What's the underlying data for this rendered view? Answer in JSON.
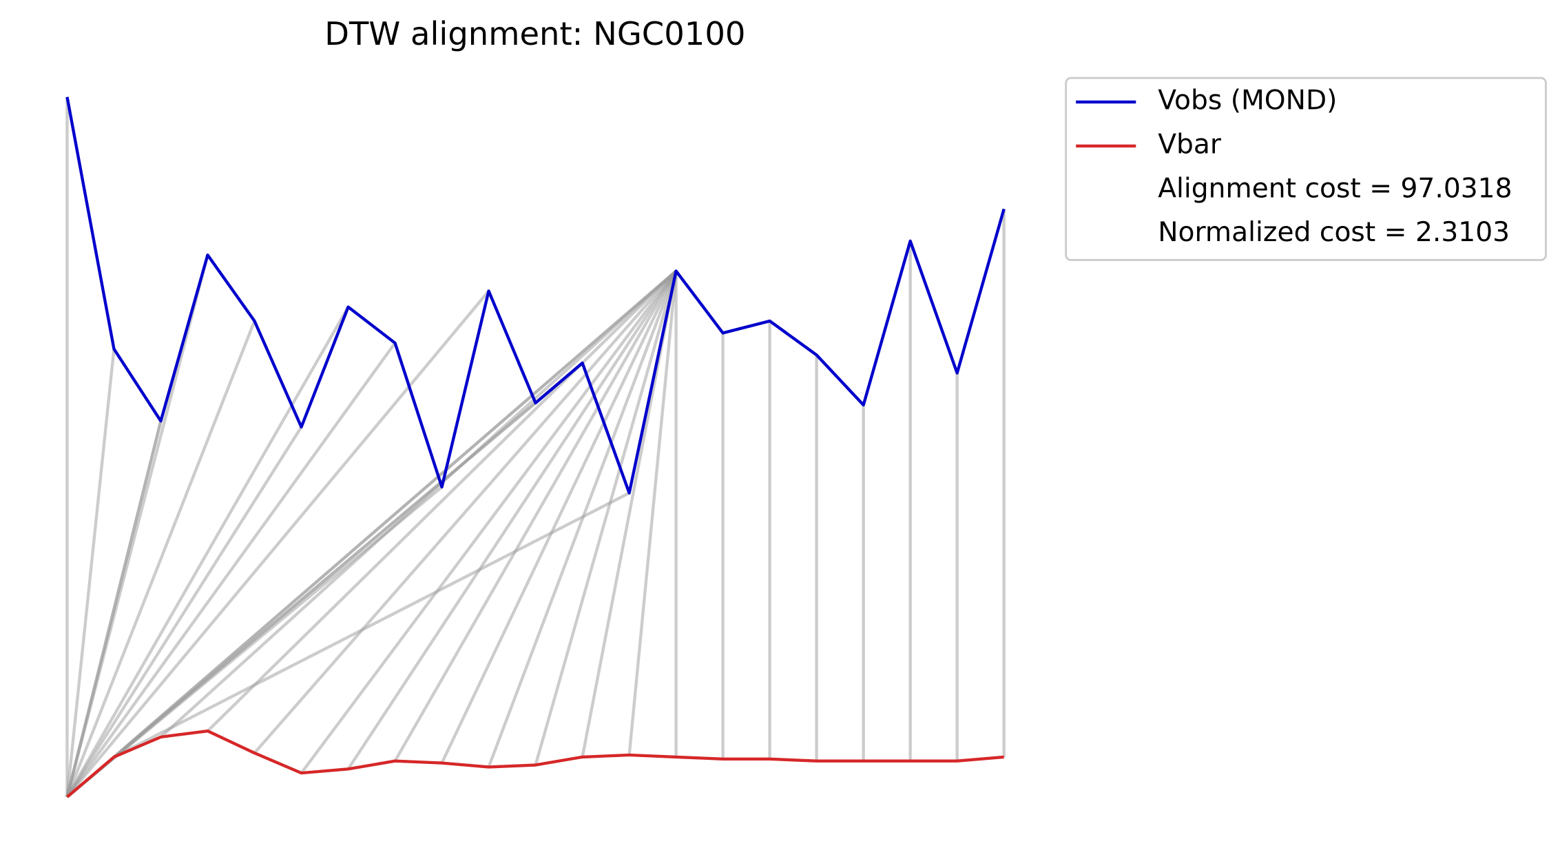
{
  "chart_data": {
    "type": "line",
    "title": "DTW alignment: NGC0100",
    "x": [
      0,
      1,
      2,
      3,
      4,
      5,
      6,
      7,
      8,
      9,
      10,
      11,
      12,
      13,
      14,
      15,
      16,
      17,
      18,
      19,
      20
    ],
    "xlim": [
      0,
      20
    ],
    "ylim": [
      -1,
      176
    ],
    "series": [
      {
        "name": "Vobs (MOND)",
        "color": "#0000cc",
        "values": [
          175,
          112,
          94,
          135.5,
          119,
          92.5,
          122.5,
          113.5,
          77.5,
          126.5,
          98.5,
          108.5,
          76,
          131.5,
          116,
          119,
          110.5,
          98,
          139,
          106,
          147
        ]
      },
      {
        "name": "Vbar",
        "color": "#d62728",
        "values": [
          0,
          10,
          15,
          16.5,
          11,
          6,
          7,
          9,
          8.5,
          7.5,
          8,
          10,
          10.5,
          10,
          9.5,
          9.5,
          9,
          9,
          9,
          9,
          10
        ]
      }
    ],
    "alignment": [
      [
        0,
        0
      ],
      [
        1,
        0
      ],
      [
        2,
        0
      ],
      [
        2,
        0
      ],
      [
        3,
        0
      ],
      [
        4,
        0
      ],
      [
        5,
        0
      ],
      [
        6,
        0
      ],
      [
        7,
        0
      ],
      [
        8,
        0
      ],
      [
        9,
        0
      ],
      [
        10,
        0
      ],
      [
        11,
        0
      ],
      [
        12,
        1
      ],
      [
        13,
        1
      ],
      [
        13,
        1
      ],
      [
        13,
        2
      ],
      [
        13,
        3
      ],
      [
        13,
        4
      ],
      [
        13,
        5
      ],
      [
        13,
        6
      ],
      [
        13,
        7
      ],
      [
        13,
        8
      ],
      [
        13,
        9
      ],
      [
        13,
        10
      ],
      [
        13,
        11
      ],
      [
        13,
        12
      ],
      [
        13,
        13
      ],
      [
        14,
        14
      ],
      [
        15,
        15
      ],
      [
        16,
        16
      ],
      [
        17,
        17
      ],
      [
        18,
        18
      ],
      [
        19,
        19
      ],
      [
        20,
        20
      ]
    ],
    "alignment_color": "#999999",
    "annotations": [
      "Alignment cost = 97.0318",
      "Normalized cost = 2.3103"
    ]
  }
}
